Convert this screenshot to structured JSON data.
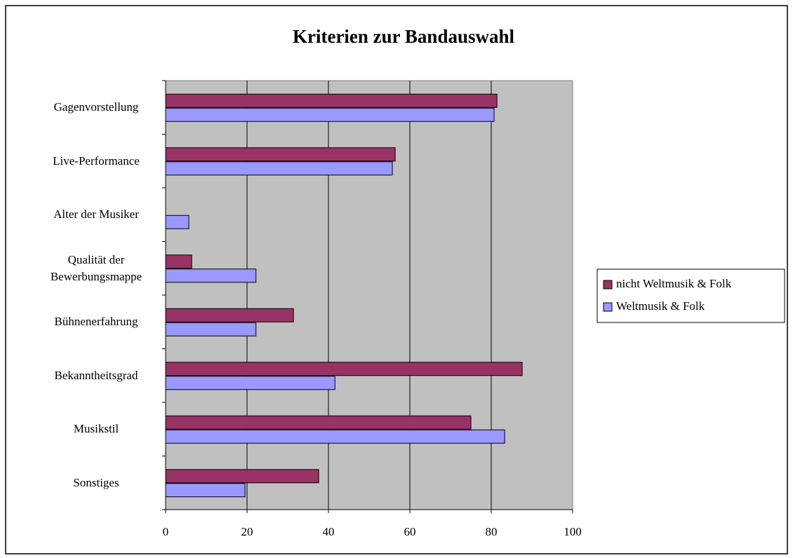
{
  "chart_data": {
    "type": "hbar",
    "title": "Kriterien zur Bandauswahl",
    "categories": [
      "Gagenvorstellung",
      "Live-Performance",
      "Alter der Musiker",
      "Qualität der Bewerbungsmappe",
      "Bühnenerfahrung",
      "Bekanntheitsgrad",
      "Musikstil",
      "Sonstiges"
    ],
    "series": [
      {
        "name": "nicht Weltmusik & Folk",
        "color": "#993366",
        "values": [
          81.4,
          56.4,
          0,
          6.4,
          31.4,
          87.6,
          75,
          37.6
        ]
      },
      {
        "name": "Weltmusik & Folk",
        "color": "#9999ff",
        "values": [
          80.7,
          55.7,
          5.7,
          22.2,
          22.2,
          41.6,
          83.3,
          19.5
        ]
      }
    ],
    "xlim": [
      0,
      100
    ],
    "xticks": [
      0,
      20,
      40,
      60,
      80,
      100
    ],
    "grid": true,
    "legend": "right"
  }
}
